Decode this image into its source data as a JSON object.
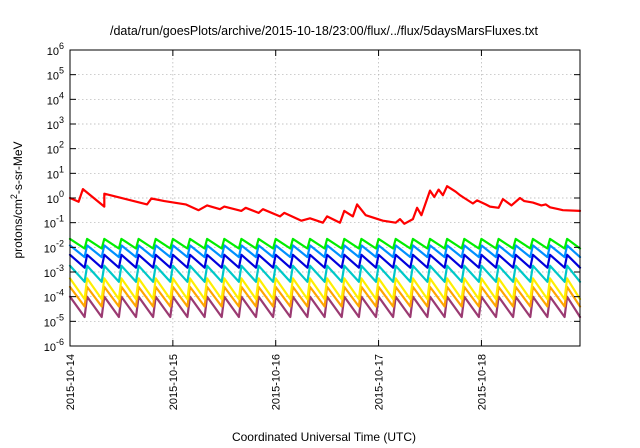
{
  "chart_data": {
    "type": "line",
    "title": "/data/run/goesPlots/archive/2015-10-18/23:00/flux/../flux/5daysMarsFluxes.txt",
    "xlabel": "Coordinated Universal Time (UTC)",
    "ylabel": "protons/cm2-s-sr-MeV",
    "ylabel_parts": {
      "base": "protons/cm",
      "sup": "2",
      "rest": "-s-sr-MeV"
    },
    "y_scale": "log",
    "ylim": [
      1e-06,
      1000000.0
    ],
    "xlim": [
      "2015-10-14 00:00",
      "2015-10-18 23:00"
    ],
    "grid": true,
    "legend": "none",
    "y_ticks": [
      {
        "value": 1e-06,
        "base": "10",
        "exp": "-6"
      },
      {
        "value": 1e-05,
        "base": "10",
        "exp": "-5"
      },
      {
        "value": 0.0001,
        "base": "10",
        "exp": "-4"
      },
      {
        "value": 0.001,
        "base": "10",
        "exp": "-3"
      },
      {
        "value": 0.01,
        "base": "10",
        "exp": "-2"
      },
      {
        "value": 0.1,
        "base": "10",
        "exp": "-1"
      },
      {
        "value": 1,
        "base": "10",
        "exp": "0"
      },
      {
        "value": 10,
        "base": "10",
        "exp": "1"
      },
      {
        "value": 100,
        "base": "10",
        "exp": "2"
      },
      {
        "value": 1000.0,
        "base": "10",
        "exp": "3"
      },
      {
        "value": 10000.0,
        "base": "10",
        "exp": "4"
      },
      {
        "value": 100000.0,
        "base": "10",
        "exp": "5"
      },
      {
        "value": 1000000.0,
        "base": "10",
        "exp": "6"
      }
    ],
    "x_ticks": [
      "2015-10-14",
      "2015-10-15",
      "2015-10-16",
      "2015-10-17",
      "2015-10-18"
    ],
    "series": [
      {
        "color": "#ff0000",
        "x": [
          "2015-10-14 00:00",
          "2015-10-14 02:00",
          "2015-10-14 03:00",
          "2015-10-14 08:00",
          "2015-10-14 08:00",
          "2015-10-14 18:00",
          "2015-10-14 19:00",
          "2015-10-14 22:00",
          "2015-10-15 03:00",
          "2015-10-15 06:00",
          "2015-10-15 08:00",
          "2015-10-15 11:00",
          "2015-10-15 12:00",
          "2015-10-15 16:00",
          "2015-10-15 17:00",
          "2015-10-15 20:00",
          "2015-10-15 21:00",
          "2015-10-16 01:00",
          "2015-10-16 02:00",
          "2015-10-16 06:00",
          "2015-10-16 08:00",
          "2015-10-16 11:00",
          "2015-10-16 12:00",
          "2015-10-16 15:00",
          "2015-10-16 16:00",
          "2015-10-16 18:00",
          "2015-10-16 19:00",
          "2015-10-16 21:00",
          "2015-10-17 01:00",
          "2015-10-17 04:00",
          "2015-10-17 05:00",
          "2015-10-17 06:00",
          "2015-10-17 08:00",
          "2015-10-17 09:00",
          "2015-10-17 10:00",
          "2015-10-17 12:00",
          "2015-10-17 13:00",
          "2015-10-17 14:00",
          "2015-10-17 15:00",
          "2015-10-17 16:00",
          "2015-10-17 18:00",
          "2015-10-17 19:00",
          "2015-10-17 20:00",
          "2015-10-17 22:00",
          "2015-10-17 23:00",
          "2015-10-18 01:00",
          "2015-10-18 02:00",
          "2015-10-18 04:00",
          "2015-10-18 05:00",
          "2015-10-18 07:00",
          "2015-10-18 09:00",
          "2015-10-18 10:00",
          "2015-10-18 12:00",
          "2015-10-18 14:00",
          "2015-10-18 15:00",
          "2015-10-18 16:00",
          "2015-10-18 18:00",
          "2015-10-18 19:00",
          "2015-10-18 23:00"
        ],
        "y": [
          1.0,
          0.7,
          2.3,
          0.45,
          1.5,
          0.55,
          0.95,
          0.75,
          0.55,
          0.32,
          0.5,
          0.35,
          0.45,
          0.3,
          0.4,
          0.25,
          0.35,
          0.18,
          0.25,
          0.12,
          0.15,
          0.1,
          0.18,
          0.1,
          0.3,
          0.18,
          0.55,
          0.2,
          0.12,
          0.1,
          0.14,
          0.09,
          0.14,
          0.4,
          0.2,
          2.0,
          1.1,
          2.2,
          1.3,
          3.0,
          1.8,
          1.3,
          1.0,
          0.6,
          0.8,
          0.55,
          0.45,
          0.4,
          0.9,
          0.5,
          1.0,
          0.75,
          0.65,
          0.5,
          0.55,
          0.42,
          0.35,
          0.32,
          0.3
        ]
      }
    ],
    "periodic_series": [
      {
        "color": "#00ee00",
        "peak": 0.022,
        "trough": 0.009
      },
      {
        "color": "#0090ff",
        "peak": 0.012,
        "trough": 0.004
      },
      {
        "color": "#0000dd",
        "peak": 0.005,
        "trough": 0.0015
      },
      {
        "color": "#00c8c8",
        "peak": 0.0018,
        "trough": 0.0004
      },
      {
        "color": "#ffee00",
        "peak": 0.00055,
        "trough": 8e-05
      },
      {
        "color": "#ffa500",
        "peak": 0.00025,
        "trough": 4e-05
      },
      {
        "color": "#9b3a72",
        "peak": 0.0001,
        "trough": 1.5e-05
      }
    ],
    "periodic_note": "sawtooth with ~4-hour cycle"
  }
}
